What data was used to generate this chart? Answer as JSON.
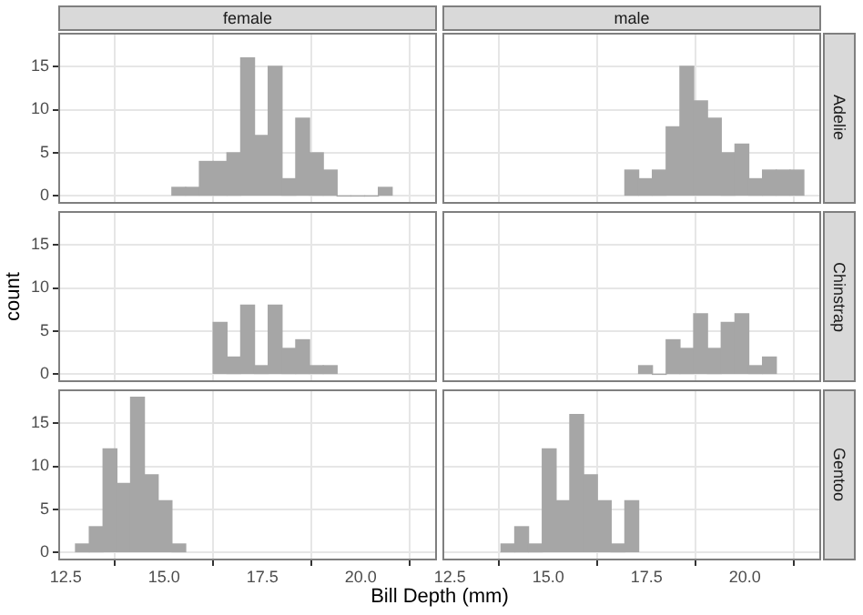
{
  "chart_data": [
    {
      "type": "histogram",
      "title": "female",
      "bins": [
        15.2,
        15.55,
        15.9,
        16.25,
        16.6,
        16.95,
        17.3,
        17.65,
        18.0,
        18.35,
        18.7,
        19.05,
        19.4,
        19.75,
        20.1,
        20.45,
        20.8
      ],
      "values": [
        1,
        1,
        4,
        4,
        5,
        16,
        7,
        15,
        2,
        9,
        5,
        3,
        0,
        0,
        0,
        1
      ],
      "color": "#a6a6a6",
      "xlim": [
        12.31,
        21.94
      ],
      "ylim": [
        -0.9,
        18.9
      ],
      "xticks": [
        12.5,
        15,
        17.5,
        20
      ],
      "yticks": [
        0,
        5,
        10,
        15
      ],
      "grid": true,
      "tick_labels": "y"
    },
    {
      "type": "histogram",
      "title": "male",
      "y2label": "Adelie",
      "bins": [
        16.95,
        17.3,
        17.65,
        18.0,
        18.35,
        18.7,
        19.05,
        19.4,
        19.75,
        20.1,
        20.45,
        20.8,
        21.15,
        21.5
      ],
      "values": [
        3,
        2,
        3,
        8,
        15,
        11,
        9,
        5,
        6,
        2,
        3,
        3,
        3
      ],
      "color": "#a6a6a6",
      "xlim": [
        12.31,
        21.94
      ],
      "ylim": [
        -0.9,
        18.9
      ],
      "xticks": [
        12.5,
        15,
        17.5,
        20
      ],
      "yticks": [
        0,
        5,
        10,
        15
      ],
      "grid": true,
      "tick_labels": false
    },
    {
      "type": "histogram",
      "ylabel": "count",
      "bins": [
        16.25,
        16.6,
        16.95,
        17.3,
        17.65,
        18.0,
        18.35,
        18.7,
        19.05,
        19.4
      ],
      "values": [
        6,
        2,
        8,
        1,
        8,
        3,
        4,
        1,
        1
      ],
      "color": "#a6a6a6",
      "xlim": [
        12.31,
        21.94
      ],
      "ylim": [
        -0.9,
        18.9
      ],
      "xticks": [
        12.5,
        15,
        17.5,
        20
      ],
      "yticks": [
        0,
        5,
        10,
        15
      ],
      "grid": true,
      "tick_labels": "y"
    },
    {
      "type": "histogram",
      "y2label": "Chinstrap",
      "bins": [
        17.3,
        17.65,
        18.0,
        18.35,
        18.7,
        19.05,
        19.4,
        19.75,
        20.1,
        20.45,
        20.8
      ],
      "values": [
        1,
        0,
        4,
        3,
        7,
        3,
        6,
        7,
        1,
        2
      ],
      "color": "#a6a6a6",
      "xlim": [
        12.31,
        21.94
      ],
      "ylim": [
        -0.9,
        18.9
      ],
      "xticks": [
        12.5,
        15,
        17.5,
        20
      ],
      "yticks": [
        0,
        5,
        10,
        15
      ],
      "grid": true,
      "tick_labels": false
    },
    {
      "type": "histogram",
      "xlabel": "Bill Depth (mm)",
      "bins": [
        12.75,
        13.1,
        13.45,
        13.8,
        14.15,
        14.5,
        14.85,
        15.2,
        15.55
      ],
      "values": [
        1,
        3,
        12,
        8,
        18,
        9,
        6,
        1
      ],
      "color": "#a6a6a6",
      "xlim": [
        12.31,
        21.94
      ],
      "ylim": [
        -0.9,
        18.9
      ],
      "xticks": [
        {
          "value": 12.5,
          "label": "12.5"
        },
        {
          "value": 15,
          "label": "15.0"
        },
        {
          "value": 17.5,
          "label": "17.5"
        },
        {
          "value": 20,
          "label": "20.0"
        }
      ],
      "yticks": [
        0,
        5,
        10,
        15
      ],
      "grid": true
    },
    {
      "type": "histogram",
      "y2label": "Gentoo",
      "bins": [
        13.8,
        14.15,
        14.5,
        14.85,
        15.2,
        15.55,
        15.9,
        16.25,
        16.6,
        16.95,
        17.3
      ],
      "values": [
        1,
        3,
        1,
        12,
        6,
        16,
        9,
        6,
        1,
        6
      ],
      "color": "#a6a6a6",
      "xlim": [
        12.31,
        21.94
      ],
      "ylim": [
        -0.9,
        18.9
      ],
      "xticks": [
        {
          "value": 12.5,
          "label": "12.5"
        },
        {
          "value": 15,
          "label": "15.0"
        },
        {
          "value": 17.5,
          "label": "17.5"
        },
        {
          "value": 20,
          "label": "20.0"
        }
      ],
      "yticks": [
        0,
        5,
        10,
        15
      ],
      "grid": true,
      "tick_labels": "x"
    }
  ]
}
